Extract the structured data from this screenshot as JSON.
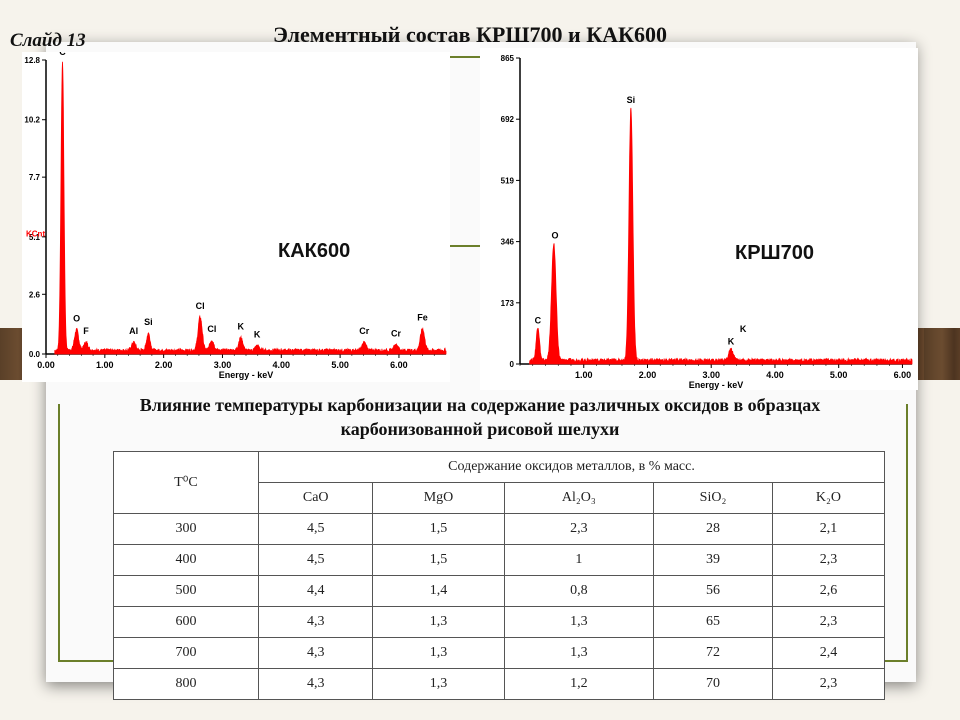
{
  "slide_label": "Слайд 13",
  "title": "Элементный состав КРШ700 и КАК600",
  "subtitle_line1": "Влияние температуры карбонизации на содержание различных оксидов в образцах",
  "subtitle_line2": "карбонизованной рисовой шелухи",
  "colors": {
    "spectrum": "#ff0000",
    "frame": "#6b7f2a"
  },
  "chart_data": [
    {
      "type": "line",
      "label": "КАК600",
      "ylabel": "KCnt",
      "xlabel": "Energy - keV",
      "xlim": [
        0,
        6.8
      ],
      "ylim": [
        0,
        12.8
      ],
      "x_ticks": [
        "0.00",
        "1.00",
        "2.00",
        "3.00",
        "4.00",
        "5.00",
        "6.00"
      ],
      "y_ticks": [
        "0.0",
        "2.6",
        "5.1",
        "7.7",
        "10.2",
        "12.8"
      ],
      "peaks": [
        {
          "element": "C",
          "x": 0.28,
          "y": 12.5
        },
        {
          "element": "O",
          "x": 0.52,
          "y": 0.9
        },
        {
          "element": "F",
          "x": 0.68,
          "y": 0.35
        },
        {
          "element": "Al",
          "x": 1.49,
          "y": 0.35
        },
        {
          "element": "Si",
          "x": 1.74,
          "y": 0.75
        },
        {
          "element": "Cl",
          "x": 2.62,
          "y": 1.45
        },
        {
          "element": "Cl",
          "x": 2.82,
          "y": 0.45
        },
        {
          "element": "K",
          "x": 3.31,
          "y": 0.55
        },
        {
          "element": "K",
          "x": 3.59,
          "y": 0.2
        },
        {
          "element": "Cr",
          "x": 5.41,
          "y": 0.35
        },
        {
          "element": "Cr",
          "x": 5.95,
          "y": 0.25
        },
        {
          "element": "Fe",
          "x": 6.4,
          "y": 0.95
        }
      ]
    },
    {
      "type": "line",
      "label": "КРШ700",
      "xlabel": "Energy - keV",
      "xlim": [
        0,
        6.15
      ],
      "ylim": [
        0,
        865
      ],
      "x_ticks": [
        "1.00",
        "2.00",
        "3.00",
        "4.00",
        "5.00",
        "6.00"
      ],
      "y_ticks": [
        "0",
        "173",
        "346",
        "519",
        "692",
        "865"
      ],
      "peaks": [
        {
          "element": "C",
          "x": 0.28,
          "y": 95
        },
        {
          "element": "O",
          "x": 0.53,
          "y": 330
        },
        {
          "element": "Si",
          "x": 1.74,
          "y": 715
        },
        {
          "element": "K",
          "x": 3.31,
          "y": 30
        }
      ],
      "peak_labels": [
        {
          "element": "C",
          "x": 0.28,
          "y": 115
        },
        {
          "element": "O",
          "x": 0.55,
          "y": 355
        },
        {
          "element": "Si",
          "x": 1.74,
          "y": 738
        },
        {
          "element": "K",
          "x": 3.31,
          "y": 55
        },
        {
          "element": "K",
          "x": 3.5,
          "y": 90
        }
      ]
    }
  ],
  "table": {
    "temp_header": "T⁰C",
    "group_header": "Содержание оксидов металлов, в % масс.",
    "columns": [
      "CaO",
      "MgO",
      "Al₂O₃",
      "SiO₂",
      "K₂O"
    ],
    "rows": [
      [
        "300",
        "4,5",
        "1,5",
        "2,3",
        "28",
        "2,1"
      ],
      [
        "400",
        "4,5",
        "1,5",
        "1",
        "39",
        "2,3"
      ],
      [
        "500",
        "4,4",
        "1,4",
        "0,8",
        "56",
        "2,6"
      ],
      [
        "600",
        "4,3",
        "1,3",
        "1,3",
        "65",
        "2,3"
      ],
      [
        "700",
        "4,3",
        "1,3",
        "1,3",
        "72",
        "2,4"
      ],
      [
        "800",
        "4,3",
        "1,3",
        "1,2",
        "70",
        "2,3"
      ]
    ]
  }
}
